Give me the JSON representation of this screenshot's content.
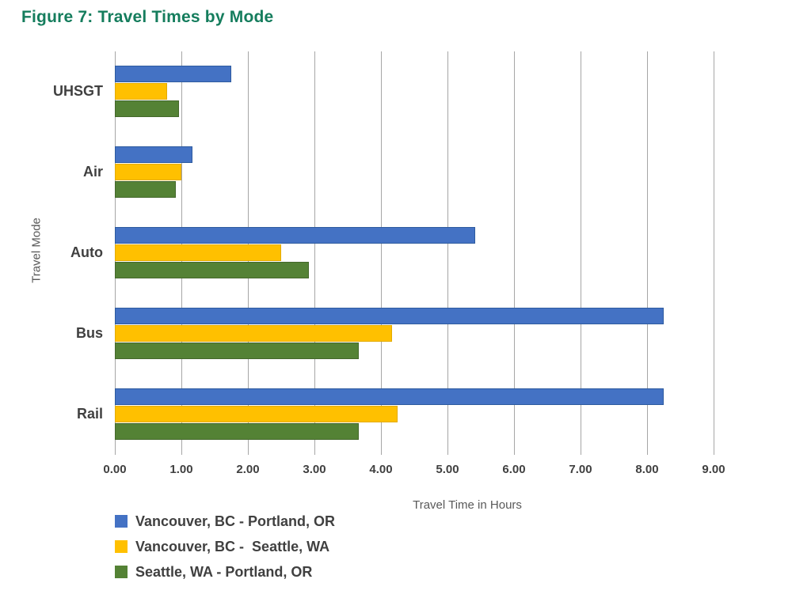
{
  "figure": {
    "title": "Figure 7: Travel Times by Mode",
    "title_color": "#157d5d"
  },
  "chart_data": {
    "type": "bar",
    "orientation": "horizontal",
    "title": "Figure 7: Travel Times by Mode",
    "categories": [
      "UHSGT",
      "Air",
      "Auto",
      "Bus",
      "Rail"
    ],
    "series": [
      {
        "name": "Vancouver, BC - Portland, OR",
        "color": "#4472C4",
        "border_color": "#2e5b9f",
        "values": [
          1.75,
          1.17,
          5.42,
          8.25,
          8.25
        ]
      },
      {
        "name": "Vancouver, BC -  Seattle, WA",
        "color": "#FFC000",
        "border_color": "#e3ab00",
        "values": [
          0.78,
          1.0,
          2.5,
          4.17,
          4.25
        ]
      },
      {
        "name": "Seattle, WA - Portland, OR",
        "color": "#548235",
        "border_color": "#44682b",
        "values": [
          0.97,
          0.92,
          2.92,
          3.67,
          3.67
        ]
      }
    ],
    "xlabel": "Travel Time in Hours",
    "ylabel": "Travel Mode",
    "xlim": [
      0,
      9
    ],
    "xtick_labels": [
      "0.00",
      "1.00",
      "2.00",
      "3.00",
      "4.00",
      "5.00",
      "6.00",
      "7.00",
      "8.00",
      "9.00"
    ],
    "grid": "vertical",
    "gridline_color": "#a6a6a6",
    "legend_position": "bottom-left",
    "axis_text_color": "#404040",
    "axis_title_color": "#595959"
  }
}
